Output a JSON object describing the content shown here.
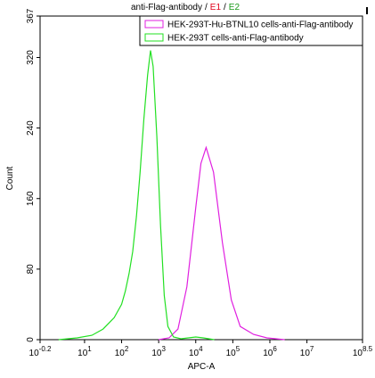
{
  "chart_data": {
    "type": "line",
    "title": [
      "anti-Flag-antibody",
      "/",
      "E1",
      "/",
      "E2"
    ],
    "title_colors": [
      "#000000",
      "#000000",
      "#e0001a",
      "#000000",
      "#1a9a1a"
    ],
    "x_label": "APC-A",
    "y_label": "Count",
    "x_log_scale": true,
    "xlim": [
      0.631,
      316227766
    ],
    "xticks": [
      {
        "value": 0.631,
        "label": "10",
        "exponent": "-0.2"
      },
      {
        "value": 10,
        "label": "10",
        "exponent": "1"
      },
      {
        "value": 100,
        "label": "10",
        "exponent": "2"
      },
      {
        "value": 1000,
        "label": "10",
        "exponent": "3"
      },
      {
        "value": 10000,
        "label": "10",
        "exponent": "4"
      },
      {
        "value": 100000,
        "label": "10",
        "exponent": "5"
      },
      {
        "value": 1000000,
        "label": "10",
        "exponent": "6"
      },
      {
        "value": 10000000,
        "label": "10",
        "exponent": "7"
      },
      {
        "value": 316227766,
        "label": "10",
        "exponent": "8.5"
      }
    ],
    "ylim": [
      0,
      367
    ],
    "yticks": [
      0,
      80,
      160,
      240,
      320,
      367
    ],
    "legend": "upper right",
    "series": [
      {
        "name": "HEK-293T-Hu-BTNL10 cells-anti-Flag-antibody",
        "color": "#e020e0",
        "x": [
          1000,
          1905,
          3311,
          5754,
          10000,
          13804,
          19055,
          30200,
          52481,
          91201,
          158489,
          363078,
          831764,
          2511886
        ],
        "values": [
          0,
          2,
          12,
          60,
          150,
          200,
          218,
          190,
          110,
          45,
          15,
          6,
          2,
          0
        ]
      },
      {
        "name": "HEK-293T cells-anti-Flag-antibody",
        "color": "#22e022",
        "x": [
          2,
          6.3,
          15.8,
          31.6,
          63.1,
          100,
          125.9,
          158.5,
          199.5,
          251.2,
          316.2,
          398.1,
          501.2,
          602.6,
          707.9,
          891.3,
          1122,
          1413,
          1778,
          2512,
          3981,
          10000,
          15849,
          31623
        ],
        "values": [
          0,
          2,
          5,
          12,
          25,
          40,
          55,
          75,
          100,
          140,
          190,
          250,
          300,
          328,
          310,
          230,
          130,
          50,
          15,
          3,
          1,
          3,
          2,
          0
        ]
      }
    ]
  }
}
